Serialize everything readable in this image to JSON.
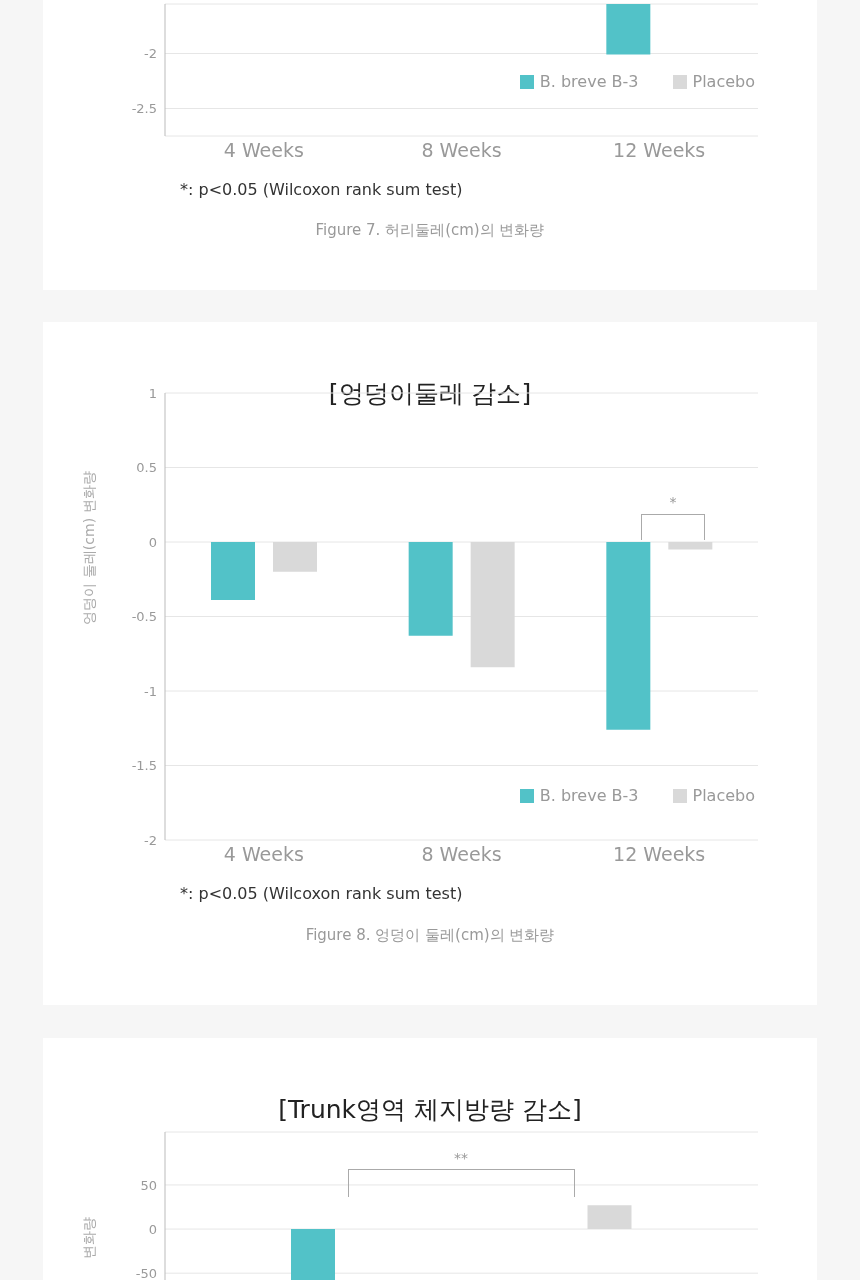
{
  "chart_data": [
    {
      "type": "bar",
      "categories": [
        "4 Weeks",
        "8 Weeks",
        "12 Weeks"
      ],
      "series": [
        {
          "name": "B. breve B-3",
          "color": "#52c2c8",
          "values": [
            null,
            null,
            -2.01
          ]
        },
        {
          "name": "Placebo",
          "color": "#d9d9d9",
          "values": [
            null,
            null,
            null
          ]
        }
      ],
      "ylim": [
        -2.75,
        -1.55
      ],
      "yticks": [
        -2,
        -2.5
      ],
      "grid": "y",
      "legend": "bottom right",
      "annotations": [
        "*: p<0.05 (Wilcoxon rank sum test)",
        "Figure 7. 허리둘레(cm)의 변화량"
      ]
    },
    {
      "type": "bar",
      "title": "[엉덩이둘레 감소]",
      "ylabel": "엉덩이 둘레(cm) 변화량",
      "categories": [
        "4 Weeks",
        "8 Weeks",
        "12 Weeks"
      ],
      "series": [
        {
          "name": "B. breve B-3",
          "color": "#52c2c8",
          "values": [
            -0.39,
            -0.63,
            -1.26
          ]
        },
        {
          "name": "Placebo",
          "color": "#d9d9d9",
          "values": [
            -0.2,
            -0.84,
            -0.05
          ]
        }
      ],
      "ylim": [
        -2,
        1
      ],
      "yticks": [
        -2,
        -1.5,
        -1,
        -0.5,
        0,
        0.5,
        1
      ],
      "grid": "y",
      "legend": "bottom right",
      "annotations": [
        "*",
        "*: p<0.05 (Wilcoxon rank sum test)",
        "Figure 8. 엉덩이 둘레(cm)의 변화량"
      ]
    },
    {
      "type": "bar",
      "title": "[Trunk영역 체지방량 감소]",
      "ylabel": "변화량",
      "categories": [
        null,
        null
      ],
      "values": [
        -60,
        27
      ],
      "colors": [
        "#52c2c8",
        "#d9d9d9"
      ],
      "ylim": [
        -60,
        110
      ],
      "yticks": [
        -50,
        0,
        50
      ],
      "grid": "y",
      "annotations": [
        "**"
      ]
    }
  ]
}
